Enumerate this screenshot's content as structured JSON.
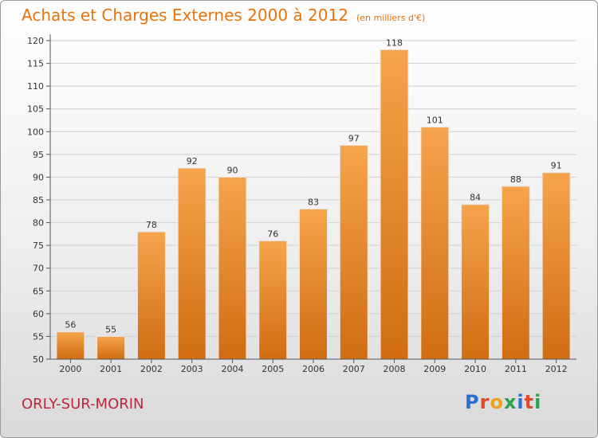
{
  "header": {
    "title": "Achats et Charges Externes 2000 à 2012",
    "subtitle": "(en milliers d'€)"
  },
  "footer": {
    "town": "ORLY-SUR-MORIN",
    "logo": "Proxiti"
  },
  "colors": {
    "bar_top": "#f6a44c",
    "bar_bottom": "#d06d12",
    "title": "#e8730c",
    "town": "#c0253a"
  },
  "chart_data": {
    "type": "bar",
    "title": "Achats et Charges Externes 2000 à 2012",
    "subtitle": "(en milliers d'€)",
    "xlabel": "",
    "ylabel": "",
    "categories": [
      "2000",
      "2001",
      "2002",
      "2003",
      "2004",
      "2005",
      "2006",
      "2007",
      "2008",
      "2009",
      "2010",
      "2011",
      "2012"
    ],
    "values": [
      56,
      55,
      78,
      92,
      90,
      76,
      83,
      97,
      118,
      101,
      84,
      88,
      91
    ],
    "ylim": [
      50,
      120
    ],
    "yticks": [
      50,
      55,
      60,
      65,
      70,
      75,
      80,
      85,
      90,
      95,
      100,
      105,
      110,
      115,
      120
    ],
    "grid": true,
    "legend": "none"
  }
}
